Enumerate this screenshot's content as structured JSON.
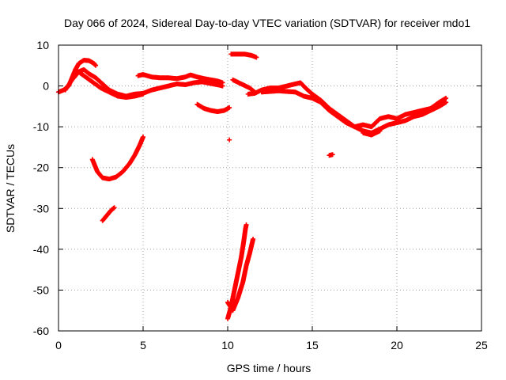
{
  "chart_data": {
    "type": "scatter",
    "title": "Day 066 of 2024, Sidereal Day-to-day VTEC variation (SDTVAR) for receiver mdo1",
    "xlabel": "GPS time / hours",
    "ylabel": "SDTVAR / TECUs",
    "xlim": [
      0,
      25
    ],
    "ylim": [
      -60,
      10
    ],
    "x_ticks": [
      0,
      5,
      10,
      15,
      20,
      25
    ],
    "y_ticks": [
      10,
      0,
      -10,
      -20,
      -30,
      -40,
      -50,
      -60
    ],
    "grid": true,
    "marker_color": "#ff0000",
    "series": [
      {
        "name": "SDTVAR",
        "tracks": [
          [
            [
              0.0,
              -1.5
            ],
            [
              0.3,
              -1.0
            ],
            [
              0.6,
              0.0
            ],
            [
              0.8,
              2.0
            ],
            [
              1.0,
              4.0
            ],
            [
              1.2,
              5.5
            ],
            [
              1.5,
              6.3
            ],
            [
              1.8,
              6.2
            ],
            [
              2.1,
              5.5
            ],
            [
              2.2,
              5.0
            ]
          ],
          [
            [
              0.4,
              -1.0
            ],
            [
              0.8,
              1.5
            ],
            [
              1.2,
              3.5
            ],
            [
              1.5,
              4.0
            ],
            [
              1.8,
              3.0
            ],
            [
              2.2,
              2.0
            ],
            [
              2.6,
              0.5
            ],
            [
              3.0,
              -1.0
            ],
            [
              3.5,
              -2.0
            ],
            [
              4.0,
              -2.5
            ],
            [
              4.5,
              -2.0
            ],
            [
              5.0,
              -1.8
            ],
            [
              5.5,
              -1.0
            ],
            [
              6.0,
              -0.5
            ],
            [
              6.5,
              0.0
            ],
            [
              7.0,
              0.5
            ],
            [
              7.5,
              0.3
            ],
            [
              8.0,
              0.8
            ],
            [
              8.5,
              1.0
            ],
            [
              9.0,
              0.6
            ],
            [
              9.5,
              0.2
            ],
            [
              9.7,
              0.0
            ]
          ],
          [
            [
              1.0,
              4.0
            ],
            [
              1.5,
              2.5
            ],
            [
              2.0,
              1.0
            ],
            [
              2.5,
              -0.5
            ],
            [
              3.0,
              -1.5
            ],
            [
              3.5,
              -2.5
            ],
            [
              4.0,
              -2.8
            ],
            [
              4.5,
              -2.5
            ],
            [
              5.0,
              -2.0
            ]
          ],
          [
            [
              4.7,
              2.5
            ],
            [
              5.0,
              2.8
            ],
            [
              5.5,
              2.2
            ],
            [
              6.0,
              2.0
            ],
            [
              6.5,
              2.0
            ],
            [
              7.0,
              1.8
            ],
            [
              7.5,
              2.2
            ],
            [
              7.8,
              2.7
            ],
            [
              8.2,
              2.2
            ],
            [
              8.6,
              1.8
            ],
            [
              9.0,
              1.5
            ],
            [
              9.4,
              1.2
            ],
            [
              9.7,
              0.8
            ]
          ],
          [
            [
              2.0,
              -18.0
            ],
            [
              2.3,
              -21.0
            ],
            [
              2.6,
              -22.5
            ],
            [
              3.0,
              -22.8
            ],
            [
              3.4,
              -22.3
            ],
            [
              3.8,
              -21.0
            ],
            [
              4.2,
              -19.0
            ],
            [
              4.5,
              -17.0
            ],
            [
              4.8,
              -14.5
            ],
            [
              5.0,
              -12.5
            ]
          ],
          [
            [
              2.6,
              -33.0
            ],
            [
              2.9,
              -31.5
            ],
            [
              3.1,
              -30.5
            ],
            [
              3.3,
              -29.8
            ]
          ],
          [
            [
              8.2,
              -4.5
            ],
            [
              8.6,
              -5.5
            ],
            [
              9.0,
              -6.0
            ],
            [
              9.4,
              -6.3
            ],
            [
              9.8,
              -6.0
            ],
            [
              10.1,
              -5.3
            ]
          ],
          [
            [
              10.1,
              -13.2
            ]
          ],
          [
            [
              10.2,
              7.8
            ],
            [
              10.6,
              7.8
            ],
            [
              11.0,
              7.8
            ],
            [
              11.4,
              7.5
            ],
            [
              11.7,
              7.0
            ]
          ],
          [
            [
              10.3,
              1.5
            ],
            [
              10.8,
              0.5
            ],
            [
              11.3,
              -0.5
            ],
            [
              11.6,
              -1.5
            ]
          ],
          [
            [
              11.2,
              -2.0
            ],
            [
              11.6,
              -1.8
            ],
            [
              12.0,
              -1.0
            ],
            [
              12.5,
              -0.5
            ],
            [
              13.0,
              -0.5
            ],
            [
              13.5,
              0.0
            ],
            [
              14.0,
              0.5
            ],
            [
              14.3,
              0.8
            ],
            [
              14.6,
              -0.5
            ],
            [
              15.0,
              -2.0
            ],
            [
              15.5,
              -3.5
            ],
            [
              16.0,
              -5.5
            ],
            [
              16.5,
              -7.0
            ],
            [
              17.0,
              -8.5
            ],
            [
              17.5,
              -10.0
            ],
            [
              18.0,
              -11.0
            ],
            [
              18.5,
              -11.5
            ],
            [
              19.0,
              -10.5
            ],
            [
              19.5,
              -9.5
            ],
            [
              20.0,
              -9.0
            ],
            [
              20.5,
              -8.5
            ],
            [
              21.0,
              -7.5
            ],
            [
              21.5,
              -7.0
            ],
            [
              22.0,
              -6.0
            ],
            [
              22.5,
              -5.0
            ],
            [
              22.9,
              -4.0
            ]
          ],
          [
            [
              12.0,
              -1.5
            ],
            [
              13.0,
              -1.2
            ],
            [
              14.0,
              -1.5
            ],
            [
              14.5,
              -2.5
            ],
            [
              15.0,
              -3.0
            ],
            [
              15.5,
              -4.0
            ],
            [
              16.0,
              -6.0
            ],
            [
              16.5,
              -7.5
            ],
            [
              17.0,
              -9.0
            ],
            [
              17.5,
              -10.0
            ],
            [
              18.0,
              -9.5
            ],
            [
              18.5,
              -10.0
            ],
            [
              19.0,
              -8.0
            ],
            [
              19.5,
              -7.5
            ],
            [
              20.0,
              -8.0
            ],
            [
              20.5,
              -7.0
            ],
            [
              21.0,
              -6.5
            ],
            [
              21.5,
              -6.0
            ],
            [
              22.0,
              -5.5
            ],
            [
              22.5,
              -4.0
            ],
            [
              22.9,
              -3.0
            ]
          ],
          [
            [
              18.0,
              -11.5
            ],
            [
              18.5,
              -12.0
            ],
            [
              19.0,
              -11.0
            ]
          ],
          [
            [
              16.0,
              -17.0
            ],
            [
              16.2,
              -16.8
            ]
          ],
          [
            [
              10.0,
              -57.0
            ],
            [
              10.2,
              -54.0
            ],
            [
              10.4,
              -50.0
            ],
            [
              10.6,
              -46.0
            ],
            [
              10.8,
              -42.0
            ],
            [
              10.95,
              -38.0
            ],
            [
              11.05,
              -35.0
            ],
            [
              11.1,
              -34.0
            ]
          ],
          [
            [
              10.0,
              -53.0
            ],
            [
              10.3,
              -55.0
            ],
            [
              10.6,
              -52.0
            ],
            [
              10.9,
              -48.0
            ],
            [
              11.1,
              -44.0
            ],
            [
              11.3,
              -41.0
            ],
            [
              11.5,
              -37.5
            ]
          ]
        ]
      }
    ]
  }
}
